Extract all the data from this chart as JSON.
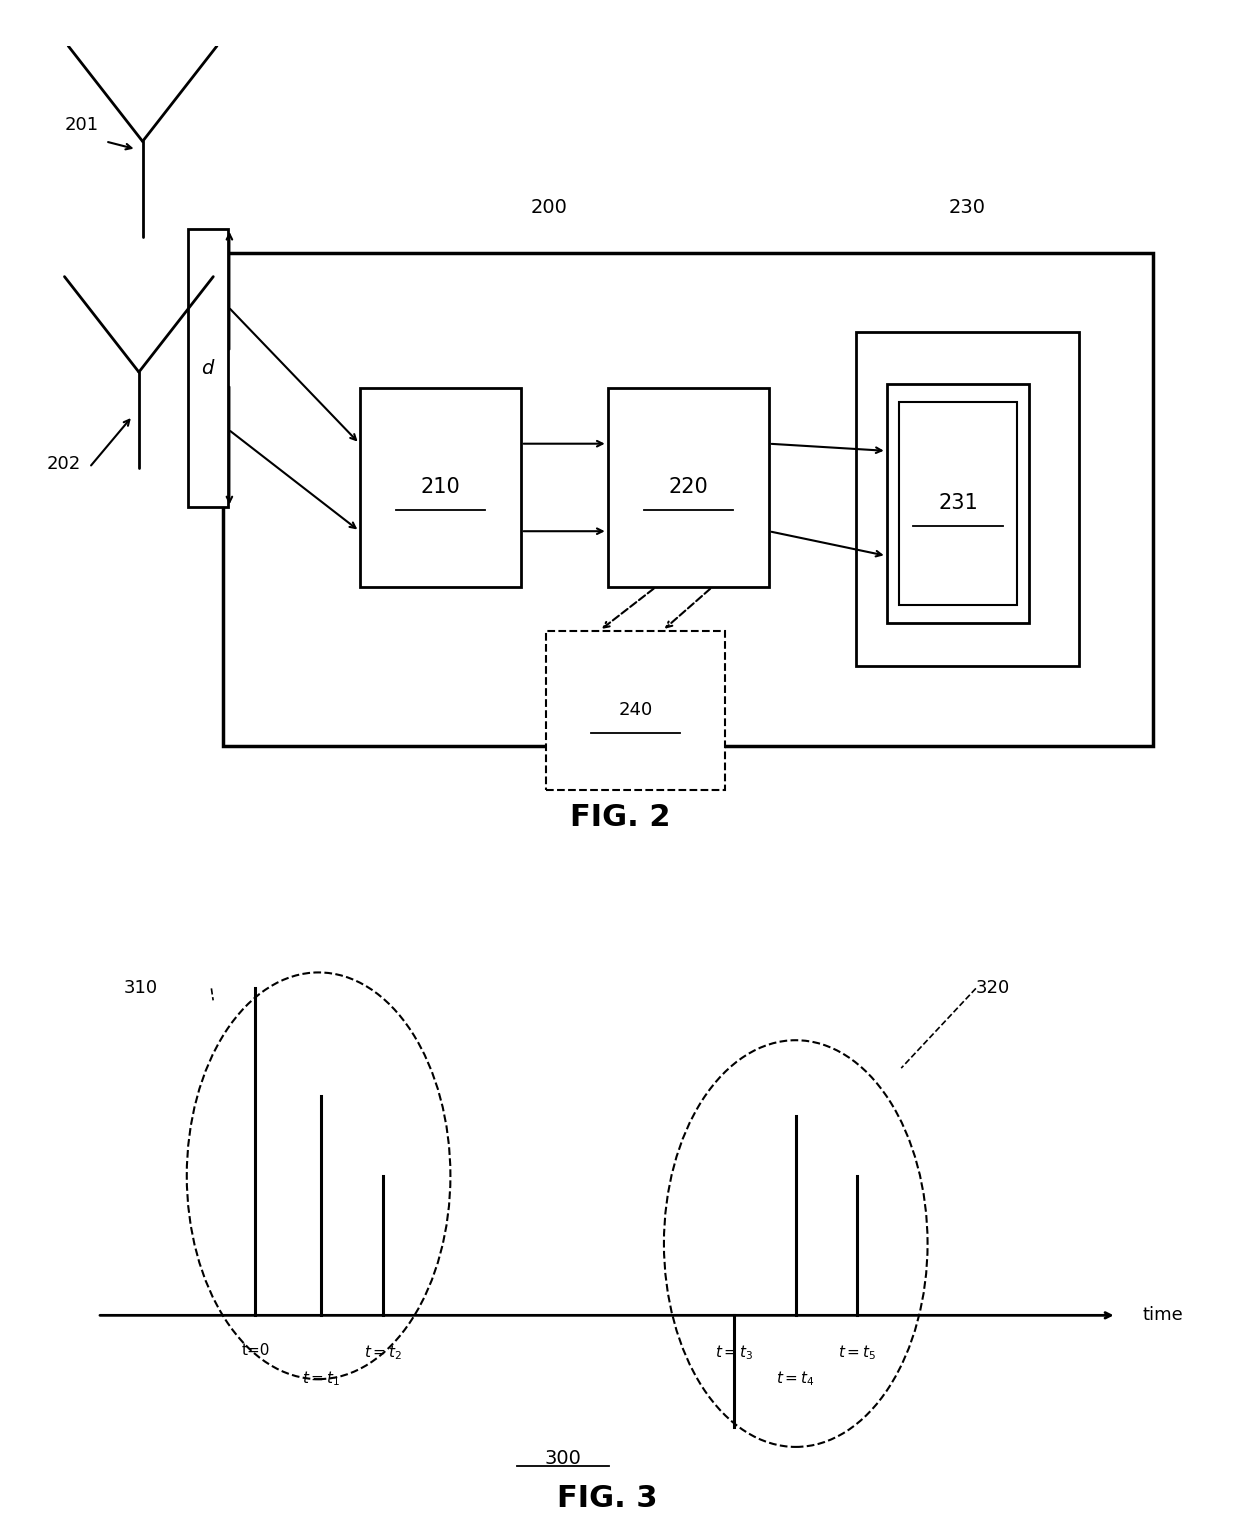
{
  "background_color": "#ffffff",
  "fig2": {
    "title": "FIG. 2",
    "label_200": "200",
    "label_201": "201",
    "label_202": "202",
    "label_210": "210",
    "label_220": "220",
    "label_230": "230",
    "label_231": "231",
    "label_240": "240",
    "label_d": "d"
  },
  "fig3": {
    "title": "FIG. 3",
    "label_300": "300",
    "label_310": "310",
    "label_320": "320",
    "label_time": "time"
  }
}
